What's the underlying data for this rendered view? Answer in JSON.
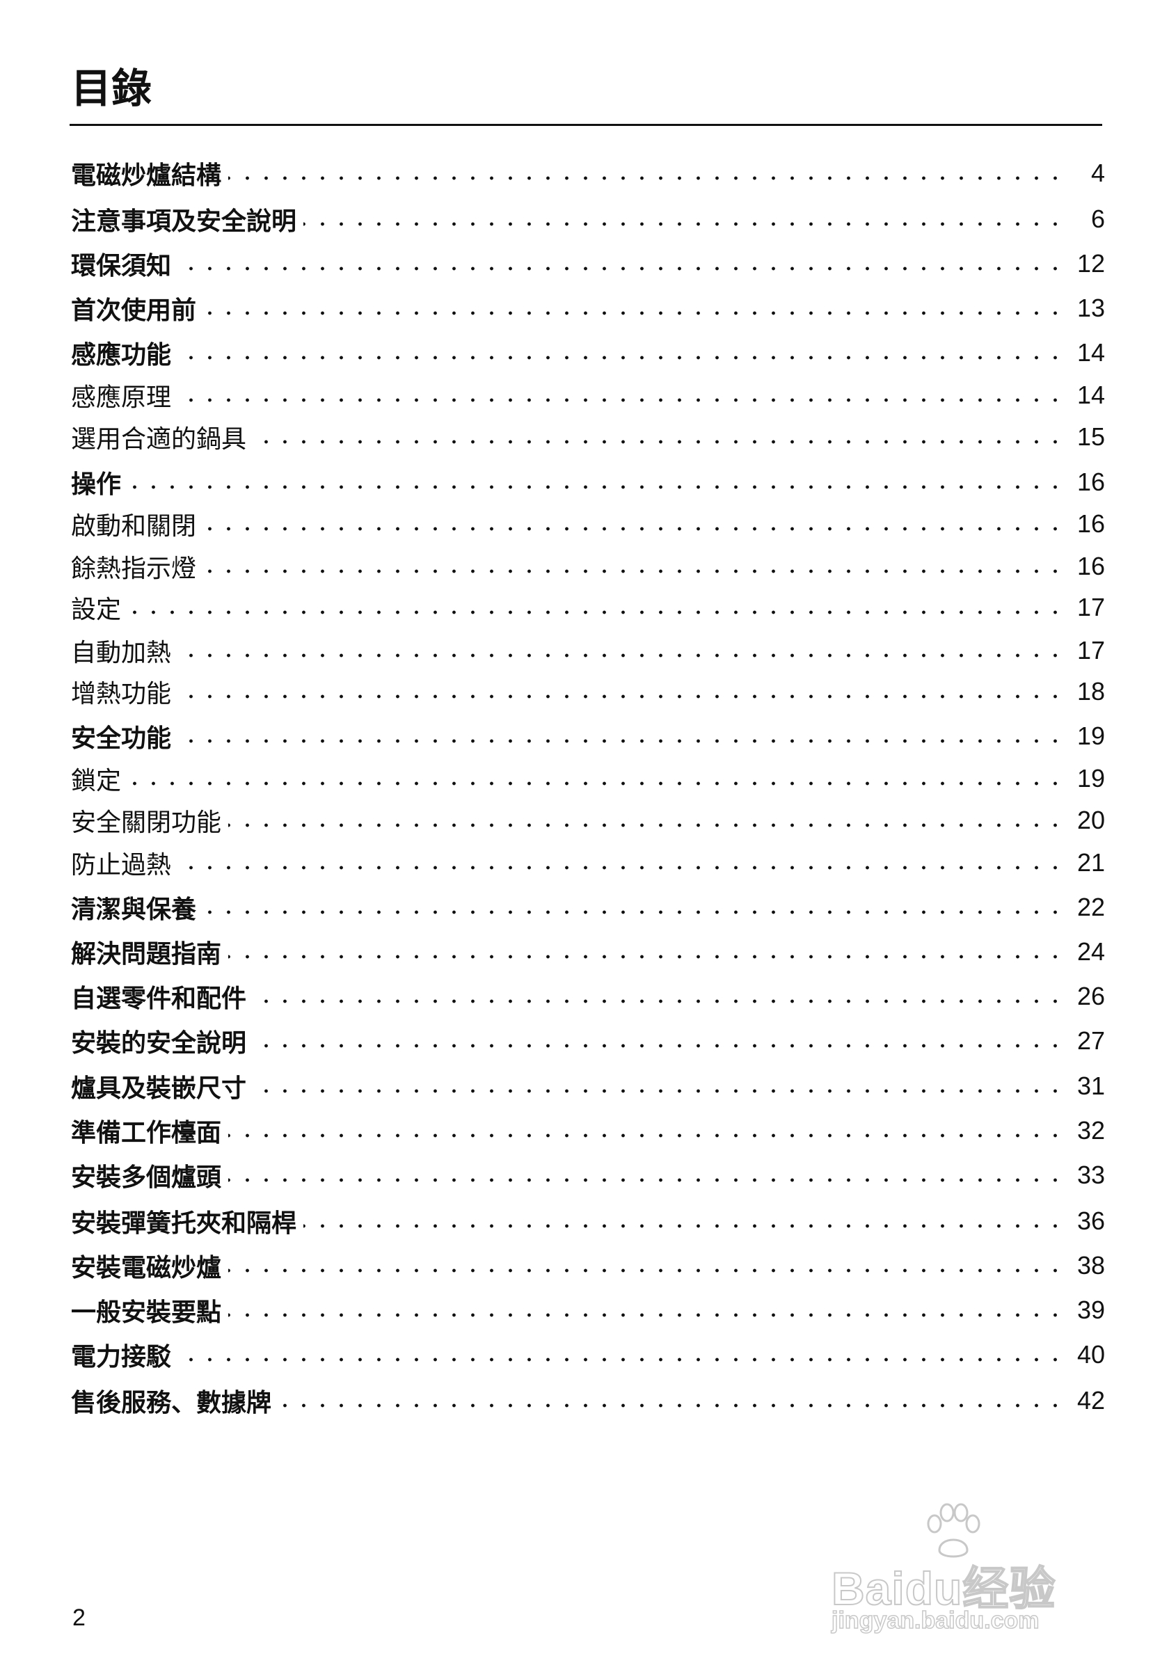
{
  "title": "目錄",
  "entries": [
    {
      "label": "電磁炒爐結構",
      "page": "4",
      "bold": true
    },
    {
      "label": "注意事項及安全說明",
      "page": "6",
      "bold": true
    },
    {
      "label": "環保須知",
      "page": "12",
      "bold": true
    },
    {
      "label": "首次使用前",
      "page": "13",
      "bold": true
    },
    {
      "label": "感應功能",
      "page": "14",
      "bold": true
    },
    {
      "label": "感應原理",
      "page": "14",
      "bold": false
    },
    {
      "label": "選用合適的鍋具",
      "page": "15",
      "bold": false
    },
    {
      "label": "操作",
      "page": "16",
      "bold": true
    },
    {
      "label": "啟動和關閉",
      "page": "16",
      "bold": false
    },
    {
      "label": "餘熱指示燈",
      "page": "16",
      "bold": false
    },
    {
      "label": "設定",
      "page": "17",
      "bold": false
    },
    {
      "label": "自動加熱",
      "page": "17",
      "bold": false
    },
    {
      "label": "增熱功能",
      "page": "18",
      "bold": false
    },
    {
      "label": "安全功能",
      "page": "19",
      "bold": true
    },
    {
      "label": "鎖定",
      "page": "19",
      "bold": false
    },
    {
      "label": "安全關閉功能",
      "page": "20",
      "bold": false
    },
    {
      "label": "防止過熱",
      "page": "21",
      "bold": false
    },
    {
      "label": "清潔與保養",
      "page": "22",
      "bold": true
    },
    {
      "label": "解決問題指南",
      "page": "24",
      "bold": true
    },
    {
      "label": "自選零件和配件",
      "page": "26",
      "bold": true
    },
    {
      "label": "安裝的安全說明",
      "page": "27",
      "bold": true
    },
    {
      "label": "爐具及裝嵌尺寸",
      "page": "31",
      "bold": true
    },
    {
      "label": "準備工作檯面",
      "page": "32",
      "bold": true
    },
    {
      "label": "安裝多個爐頭",
      "page": "33",
      "bold": true
    },
    {
      "label": "安裝彈簧托夾和隔桿",
      "page": "36",
      "bold": true
    },
    {
      "label": "安裝電磁炒爐",
      "page": "38",
      "bold": true
    },
    {
      "label": "一般安裝要點",
      "page": "39",
      "bold": true
    },
    {
      "label": "電力接駁",
      "page": "40",
      "bold": true
    },
    {
      "label": "售後服務、數據牌",
      "page": "42",
      "bold": true
    }
  ],
  "page_number": "2",
  "watermark": {
    "brand": "Baidu经验",
    "url": "jingyan.baidu.com",
    "icon": "paw-icon"
  }
}
